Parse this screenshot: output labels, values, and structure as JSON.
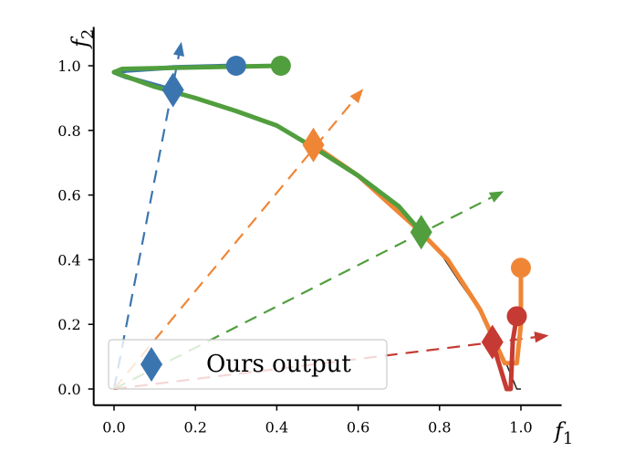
{
  "chart_data": {
    "type": "line",
    "xlabel_main": "f",
    "xlabel_sub": "1",
    "ylabel_main": "f",
    "ylabel_sub": "2",
    "xlim": [
      -0.05,
      1.1
    ],
    "ylim": [
      -0.05,
      1.12
    ],
    "xticks": [
      "0.0",
      "0.2",
      "0.4",
      "0.6",
      "0.8",
      "1.0"
    ],
    "yticks": [
      "0.0",
      "0.2",
      "0.4",
      "0.6",
      "0.8",
      "1.0"
    ],
    "grid": false,
    "legend": {
      "position": "lower-left",
      "label": "Ours output"
    },
    "colors": {
      "blue": "#3b75af",
      "orange": "#ef8636",
      "green": "#519e3e",
      "red": "#c53a32"
    },
    "pareto_front": {
      "x": [
        0.0,
        0.1,
        0.2,
        0.3,
        0.4,
        0.5,
        0.6,
        0.7,
        0.75,
        0.8,
        0.85,
        0.9,
        0.93,
        0.96,
        0.98,
        0.99,
        1.0
      ],
      "y": [
        0.98,
        0.935,
        0.9,
        0.86,
        0.815,
        0.74,
        0.66,
        0.565,
        0.49,
        0.425,
        0.33,
        0.24,
        0.17,
        0.09,
        0.03,
        0.0,
        0.0
      ]
    },
    "series": [
      {
        "color": "blue",
        "start": [
          0.3,
          1.0
        ],
        "final": [
          0.145,
          0.925
        ],
        "path_x": [
          0.3,
          0.15,
          0.03,
          0.0,
          0.03,
          0.145
        ],
        "path_y": [
          1.0,
          0.995,
          0.985,
          0.98,
          0.965,
          0.925
        ],
        "ray_end": [
          0.165,
          1.07
        ]
      },
      {
        "color": "orange",
        "start": [
          1.0,
          0.375
        ],
        "final": [
          0.49,
          0.755
        ],
        "path_x": [
          1.0,
          1.0,
          0.99,
          0.96,
          0.9,
          0.82,
          0.75,
          0.6,
          0.49
        ],
        "path_y": [
          0.375,
          0.2,
          0.08,
          0.08,
          0.245,
          0.4,
          0.49,
          0.66,
          0.755
        ],
        "ray_end": [
          0.61,
          0.925
        ]
      },
      {
        "color": "green",
        "start": [
          0.41,
          1.0
        ],
        "final": [
          0.755,
          0.485
        ],
        "path_x": [
          0.41,
          0.2,
          0.02,
          0.0,
          0.1,
          0.2,
          0.3,
          0.4,
          0.5,
          0.6,
          0.7,
          0.755
        ],
        "path_y": [
          1.0,
          0.995,
          0.99,
          0.98,
          0.935,
          0.9,
          0.86,
          0.815,
          0.74,
          0.66,
          0.565,
          0.485
        ],
        "ray_end": [
          0.955,
          0.61
        ]
      },
      {
        "color": "red",
        "start": [
          0.99,
          0.225
        ],
        "final": [
          0.93,
          0.145
        ],
        "path_x": [
          0.99,
          0.98,
          0.975,
          0.965,
          0.93
        ],
        "path_y": [
          0.225,
          0.15,
          0.0,
          0.0,
          0.145
        ],
        "ray_end": [
          1.065,
          0.165
        ]
      }
    ]
  }
}
